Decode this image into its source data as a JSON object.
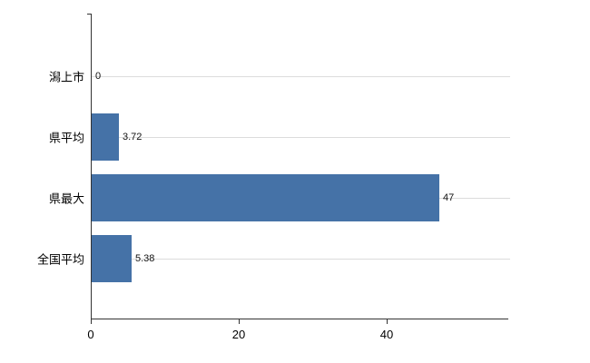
{
  "chart_data": {
    "type": "bar",
    "orientation": "horizontal",
    "categories": [
      "潟上市",
      "県平均",
      "県最大",
      "全国平均"
    ],
    "values": [
      0,
      3.72,
      47,
      5.38
    ],
    "value_labels": [
      "0",
      "3.72",
      "47",
      "5.38"
    ],
    "xlim": [
      0,
      56.4
    ],
    "xticks": [
      0,
      20,
      40
    ],
    "xtick_labels": [
      "0",
      "20",
      "40"
    ],
    "title": "",
    "xlabel": "",
    "ylabel": "",
    "legend": "none",
    "grid": "horizontal-light"
  },
  "colors": {
    "bar": "#4572a7",
    "axis": "#333333",
    "gridline": "#dcdcdc",
    "background": "#ffffff"
  }
}
